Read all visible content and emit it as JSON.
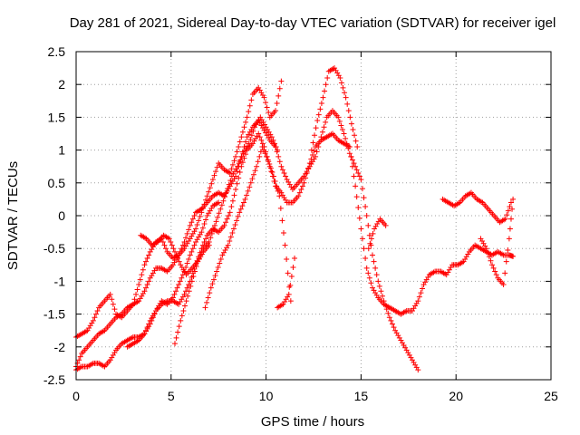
{
  "chart_data": {
    "type": "scatter",
    "title": "Day 281 of 2021, Sidereal Day-to-day VTEC variation (SDTVAR) for receiver igel",
    "xlabel": "GPS time / hours",
    "ylabel": "SDTVAR / TECUs",
    "xlim": [
      0,
      25
    ],
    "ylim": [
      -2.5,
      2.5
    ],
    "x_ticks": [
      0,
      5,
      10,
      15,
      20,
      25
    ],
    "y_ticks": [
      -2.5,
      -2,
      -1.5,
      -1,
      -0.5,
      0,
      0.5,
      1,
      1.5,
      2,
      2.5
    ],
    "grid": true,
    "marker": "+",
    "color": "#ff0000",
    "series": [
      {
        "x": [
          0.0,
          0.3,
          0.6,
          0.9,
          1.2,
          1.5,
          1.8,
          2.1,
          2.4,
          2.7,
          3.0,
          3.3,
          3.6,
          3.9,
          4.2,
          4.5,
          4.8,
          5.1,
          5.4,
          5.7,
          6.0,
          6.3,
          6.6,
          6.9,
          7.2,
          7.5,
          7.8,
          8.1,
          8.4,
          8.7,
          9.0,
          9.3,
          9.6,
          9.9,
          10.2,
          10.5,
          10.8
        ],
        "y": [
          -1.85,
          -1.8,
          -1.75,
          -1.6,
          -1.4,
          -1.3,
          -1.2,
          -1.5,
          -1.55,
          -1.45,
          -1.35,
          -1.05,
          -0.75,
          -0.55,
          -0.4,
          -0.35,
          -0.55,
          -0.65,
          -0.6,
          -0.5,
          -0.35,
          -0.2,
          0.05,
          0.3,
          0.55,
          0.8,
          0.7,
          0.65,
          0.9,
          1.2,
          1.5,
          1.85,
          1.95,
          1.8,
          1.5,
          1.6,
          2.05
        ]
      },
      {
        "x": [
          0.0,
          0.3,
          0.6,
          0.9,
          1.2,
          1.5,
          1.8,
          2.1,
          2.4,
          2.7,
          3.0,
          3.3,
          3.6,
          3.9,
          4.2,
          4.5,
          4.8,
          5.1,
          5.4,
          5.7,
          6.0,
          6.3,
          6.6,
          6.9,
          7.2,
          7.5,
          7.8,
          8.1,
          8.4,
          8.7,
          9.0,
          9.3,
          9.6,
          9.9,
          10.2,
          10.5,
          10.8,
          11.1,
          11.4,
          11.7,
          12.0,
          12.3,
          12.6,
          12.9,
          13.2,
          13.5,
          13.8,
          14.1,
          14.4,
          14.7,
          15.0,
          15.3,
          15.6,
          15.9,
          16.2,
          16.5,
          16.8,
          17.1,
          17.4,
          17.7,
          18.0
        ],
        "y": [
          -2.3,
          -2.1,
          -2.0,
          -1.9,
          -1.8,
          -1.75,
          -1.65,
          -1.55,
          -1.5,
          -1.4,
          -1.35,
          -1.3,
          -1.15,
          -0.95,
          -0.8,
          -0.8,
          -0.85,
          -0.75,
          -0.6,
          -0.4,
          -0.15,
          0.05,
          0.1,
          0.2,
          0.3,
          0.35,
          0.3,
          0.45,
          0.6,
          0.9,
          1.2,
          1.35,
          1.45,
          1.3,
          1.15,
          1.05,
          0.75,
          0.55,
          0.4,
          0.5,
          0.6,
          0.75,
          0.9,
          1.2,
          1.5,
          1.6,
          1.5,
          1.25,
          0.95,
          0.75,
          0.55,
          0.0,
          -0.6,
          -1.0,
          -1.3,
          -1.55,
          -1.75,
          -1.9,
          -2.05,
          -2.2,
          -2.35
        ]
      },
      {
        "x": [
          0.0,
          0.3,
          0.6,
          0.9,
          1.2,
          1.5,
          1.8,
          2.1,
          2.4,
          2.7,
          3.0,
          3.3,
          3.6,
          3.9,
          4.2,
          4.5,
          4.8,
          5.1,
          5.4,
          5.7,
          6.0,
          6.3,
          6.6,
          6.9,
          7.2,
          7.5,
          7.8,
          8.1,
          8.4,
          8.7,
          9.0,
          9.3,
          9.6,
          9.9,
          10.2,
          10.5,
          10.8,
          11.1,
          11.4,
          11.7,
          12.0,
          12.3,
          12.6,
          12.9,
          13.2,
          13.5,
          13.8,
          14.1,
          14.4,
          14.7,
          15.0,
          15.3,
          15.6,
          15.9,
          16.2,
          16.5,
          16.8,
          17.1,
          17.4,
          17.7,
          18.0,
          18.3,
          18.6,
          18.9,
          19.2,
          19.5,
          19.8,
          20.1,
          20.4,
          20.7,
          21.0,
          21.3,
          21.6,
          21.9,
          22.2,
          22.5,
          22.8,
          23.0
        ],
        "y": [
          -2.35,
          -2.3,
          -2.3,
          -2.25,
          -2.25,
          -2.3,
          -2.2,
          -2.05,
          -1.95,
          -1.9,
          -1.85,
          -1.85,
          -1.8,
          -1.6,
          -1.45,
          -1.35,
          -1.3,
          -1.3,
          -1.35,
          -1.2,
          -1.0,
          -0.75,
          -0.5,
          -0.3,
          -0.2,
          -0.25,
          -0.15,
          0.05,
          0.4,
          0.75,
          1.0,
          1.1,
          1.25,
          1.05,
          0.75,
          0.45,
          0.35,
          0.2,
          0.2,
          0.3,
          0.5,
          0.8,
          1.05,
          1.15,
          1.2,
          1.25,
          1.15,
          1.1,
          1.05,
          0.45,
          -0.2,
          -0.8,
          -1.1,
          -1.25,
          -1.35,
          -1.4,
          -1.45,
          -1.5,
          -1.45,
          -1.45,
          -1.3,
          -1.05,
          -0.9,
          -0.85,
          -0.85,
          -0.9,
          -0.75,
          -0.75,
          -0.7,
          -0.55,
          -0.45,
          -0.5,
          -0.55,
          -0.6,
          -0.55,
          -0.6,
          -0.6,
          -0.62
        ]
      },
      {
        "x": [
          2.7,
          3.0,
          3.3,
          3.6,
          3.9,
          4.2,
          4.5,
          4.8,
          5.1,
          5.4,
          5.7,
          6.0,
          6.3,
          6.6,
          6.9,
          7.2,
          7.5
        ],
        "y": [
          -2.0,
          -1.95,
          -1.9,
          -1.8,
          -1.65,
          -1.45,
          -1.3,
          -1.35,
          -1.25,
          -1.05,
          -0.85,
          -0.6,
          -0.4,
          -0.25,
          0.0,
          0.15,
          0.2
        ]
      },
      {
        "x": [
          3.4,
          3.7,
          4.0,
          4.3,
          4.6,
          4.9,
          5.2,
          5.5,
          5.8,
          6.1,
          6.4,
          6.7,
          7.0
        ],
        "y": [
          -0.3,
          -0.35,
          -0.45,
          -0.4,
          -0.3,
          -0.35,
          -0.55,
          -0.75,
          -0.9,
          -0.8,
          -0.7,
          -0.55,
          -0.45
        ]
      },
      {
        "x": [
          5.2,
          5.5,
          5.8,
          6.1,
          6.4,
          6.7,
          7.0,
          7.3,
          7.6,
          7.9,
          8.2,
          8.5,
          8.8,
          9.1,
          9.4,
          9.7,
          10.0,
          10.3,
          10.6
        ],
        "y": [
          -1.95,
          -1.6,
          -1.3,
          -1.0,
          -0.7,
          -0.5,
          -0.4,
          -0.15,
          0.1,
          0.35,
          0.6,
          0.75,
          0.95,
          1.1,
          1.35,
          1.5,
          1.35,
          1.2,
          1.0
        ]
      },
      {
        "x": [
          6.8,
          7.1,
          7.4,
          7.7,
          8.0,
          8.3,
          8.6,
          8.9,
          9.2,
          9.5,
          9.8,
          10.1,
          10.4,
          10.7,
          11.0,
          11.3
        ],
        "y": [
          -1.4,
          -1.1,
          -0.85,
          -0.6,
          -0.45,
          -0.2,
          0.05,
          0.25,
          0.5,
          0.75,
          1.05,
          0.85,
          0.6,
          0.3,
          -0.45,
          -1.3
        ]
      },
      {
        "x": [
          10.6,
          10.9,
          11.2,
          11.5
        ],
        "y": [
          -1.4,
          -1.35,
          -1.2,
          -0.65
        ]
      },
      {
        "x": [
          12.4,
          12.7,
          13.0,
          13.3,
          13.6,
          13.9,
          14.2,
          14.5,
          14.8
        ],
        "y": [
          1.0,
          1.45,
          1.8,
          2.2,
          2.25,
          2.1,
          1.8,
          1.4,
          1.05
        ]
      },
      {
        "x": [
          15.4,
          15.7,
          16.0,
          16.3
        ],
        "y": [
          -0.5,
          -0.2,
          -0.05,
          -0.15
        ]
      },
      {
        "x": [
          19.3,
          19.6,
          19.9,
          20.2,
          20.5,
          20.8,
          21.1,
          21.4,
          21.7,
          22.0,
          22.3,
          22.6,
          22.9
        ],
        "y": [
          0.25,
          0.2,
          0.15,
          0.2,
          0.3,
          0.35,
          0.25,
          0.2,
          0.1,
          0.0,
          -0.1,
          -0.05,
          0.2
        ]
      },
      {
        "x": [
          21.3,
          21.6,
          21.9,
          22.2,
          22.5,
          22.8,
          23.0
        ],
        "y": [
          -0.35,
          -0.5,
          -0.75,
          -0.95,
          -1.05,
          -0.35,
          0.25
        ]
      }
    ]
  }
}
